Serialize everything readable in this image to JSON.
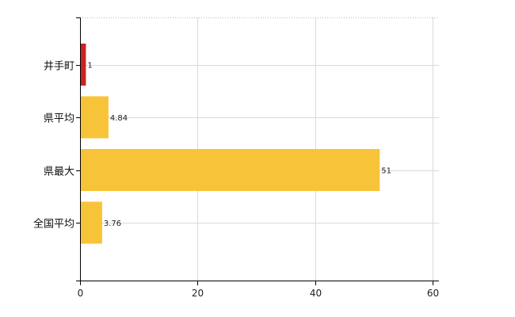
{
  "chart_data": {
    "type": "bar",
    "orientation": "horizontal",
    "categories": [
      "井手町",
      "県平均",
      "県最大",
      "全国平均"
    ],
    "values": [
      1,
      4.84,
      51,
      3.76
    ],
    "value_labels": [
      "1",
      "4.84",
      "51",
      "3.76"
    ],
    "bar_colors": [
      "#cc2222",
      "#f7c439",
      "#f7c439",
      "#f7c439"
    ],
    "xlim": [
      0,
      60
    ],
    "xticks": [
      0,
      20,
      40,
      60
    ],
    "xtick_labels": [
      "0",
      "20",
      "40",
      "60"
    ],
    "title": "",
    "xlabel": "",
    "ylabel": "",
    "grid": true,
    "legend": "none"
  }
}
